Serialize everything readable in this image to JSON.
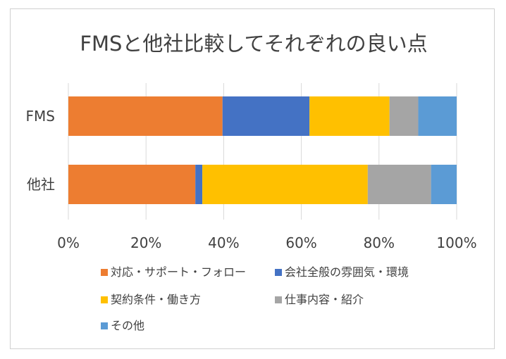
{
  "chart_data": {
    "type": "bar",
    "orientation": "horizontal",
    "stacked": "percent",
    "title": "FMSと他社比較してそれぞれの良い点",
    "categories": [
      "FMS",
      "他社"
    ],
    "series": [
      {
        "name": "対応・サポート・フォロー",
        "color": "#ED7D31",
        "values": [
          39.7,
          32.7
        ]
      },
      {
        "name": "会社全般の雰囲気・環境",
        "color": "#4472C4",
        "values": [
          22.4,
          1.8
        ]
      },
      {
        "name": "契約条件・働き方",
        "color": "#FFC000",
        "values": [
          20.6,
          42.6
        ]
      },
      {
        "name": "仕事内容・紹介",
        "color": "#A5A5A5",
        "values": [
          7.4,
          16.3
        ]
      },
      {
        "name": "その他",
        "color": "#5B9BD5",
        "values": [
          9.9,
          6.6
        ]
      }
    ],
    "xlim": [
      0,
      100
    ],
    "xticks": [
      "0%",
      "20%",
      "40%",
      "60%",
      "80%",
      "100%"
    ],
    "grid": true,
    "legend_position": "bottom"
  }
}
